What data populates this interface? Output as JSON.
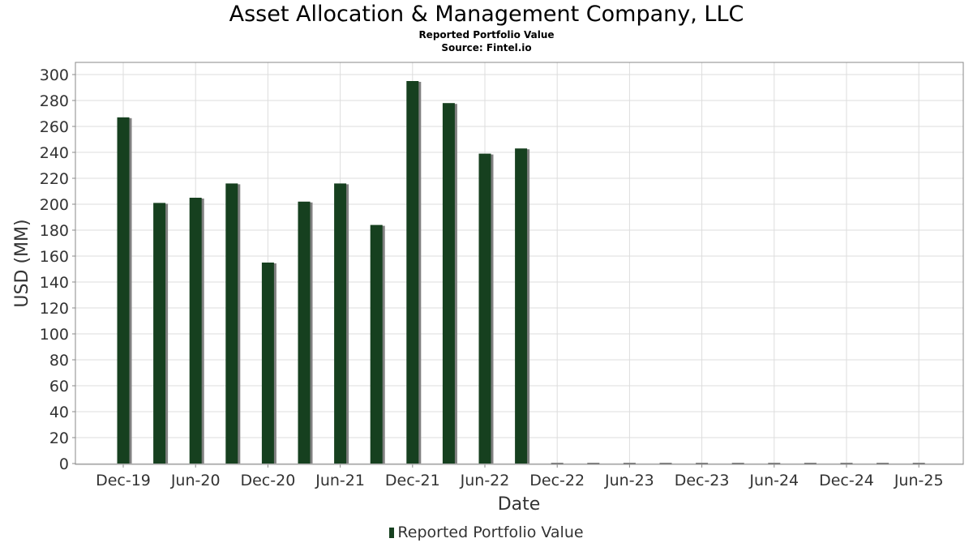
{
  "header": {
    "title": "Asset Allocation & Management Company, LLC",
    "subtitle": "Reported Portfolio Value",
    "source": "Source: Fintel.io"
  },
  "chart_data": {
    "type": "bar",
    "title": "Asset Allocation & Management Company, LLC",
    "subtitle": "Reported Portfolio Value",
    "xlabel": "Date",
    "ylabel": "USD (MM)",
    "ylim": [
      0,
      310
    ],
    "yticks": [
      0,
      20,
      40,
      60,
      80,
      100,
      120,
      140,
      160,
      180,
      200,
      220,
      240,
      260,
      280,
      300
    ],
    "xtick_labels": [
      "Dec-19",
      "Jun-20",
      "Dec-20",
      "Jun-21",
      "Dec-21",
      "Jun-22",
      "Dec-22",
      "Jun-23",
      "Dec-23",
      "Jun-24",
      "Dec-24",
      "Jun-25"
    ],
    "categories": [
      "Dec-19",
      "Mar-20",
      "Jun-20",
      "Sep-20",
      "Dec-20",
      "Mar-21",
      "Jun-21",
      "Sep-21",
      "Dec-21",
      "Mar-22",
      "Jun-22",
      "Sep-22",
      "Dec-22",
      "Mar-23",
      "Jun-23",
      "Sep-23",
      "Dec-23",
      "Mar-24",
      "Jun-24",
      "Sep-24",
      "Dec-24",
      "Mar-25",
      "Jun-25"
    ],
    "series": [
      {
        "name": "Reported Portfolio Value",
        "values": [
          267,
          201,
          205,
          216,
          155,
          202,
          216,
          184,
          295,
          278,
          239,
          243,
          0,
          0,
          0,
          0,
          0,
          0,
          0,
          0,
          0,
          0,
          0
        ]
      }
    ],
    "grid": true,
    "legend": "bottom-center",
    "colors": {
      "bar": "#16401f",
      "bar_shadow": "#808080",
      "grid": "#dddddd"
    }
  }
}
